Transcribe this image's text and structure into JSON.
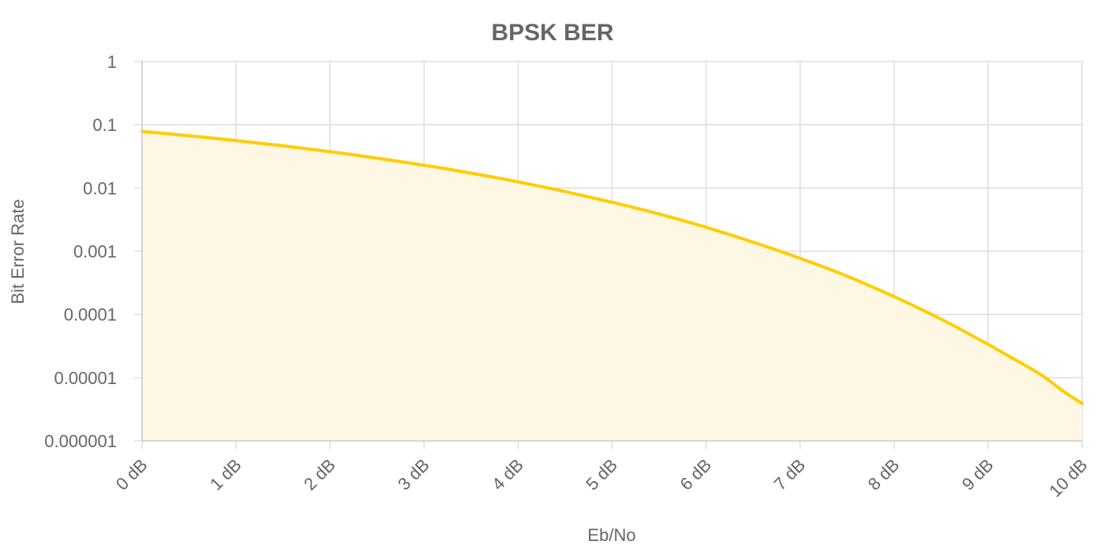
{
  "chart_data": {
    "type": "area",
    "title": "BPSK BER",
    "xlabel": "Eb/No",
    "ylabel": "Bit Error Rate",
    "x_unit": "dB",
    "x_ticks": [
      0,
      1,
      2,
      3,
      4,
      5,
      6,
      7,
      8,
      9,
      10
    ],
    "x_tick_labels": [
      "0 dB",
      "1 dB",
      "2 dB",
      "3 dB",
      "4 dB",
      "5 dB",
      "6 dB",
      "7 dB",
      "8 dB",
      "9 dB",
      "10 dB"
    ],
    "xlim": [
      0,
      10
    ],
    "y_scale": "log",
    "ylim": [
      1e-06,
      1
    ],
    "y_ticks": [
      1,
      0.1,
      0.01,
      0.001,
      0.0001,
      1e-05,
      1e-06
    ],
    "y_tick_labels": [
      "1",
      "0.1",
      "0.01",
      "0.001",
      "0.0001",
      "0.00001",
      "0.000001"
    ],
    "grid": true,
    "legend": "none",
    "series": [
      {
        "color": "#ffcd00",
        "fill_color": "#fdf7e3",
        "x": [
          0,
          0.5,
          1,
          1.5,
          2,
          2.5,
          3,
          3.5,
          4,
          4.5,
          5,
          5.5,
          6,
          6.5,
          7,
          7.5,
          8,
          8.5,
          9,
          9.2,
          9.4,
          9.6,
          9.8,
          10
        ],
        "values": [
          0.0786,
          0.0671,
          0.0563,
          0.0464,
          0.0375,
          0.0296,
          0.0229,
          0.0172,
          0.0125,
          0.00876,
          0.00595,
          0.00388,
          0.00239,
          0.00139,
          0.000773,
          0.000403,
          0.000191,
          8.43e-05,
          3.36e-05,
          2.27e-05,
          1.55e-05,
          1.02e-05,
          6.1e-06,
          3.9e-06
        ]
      }
    ]
  }
}
